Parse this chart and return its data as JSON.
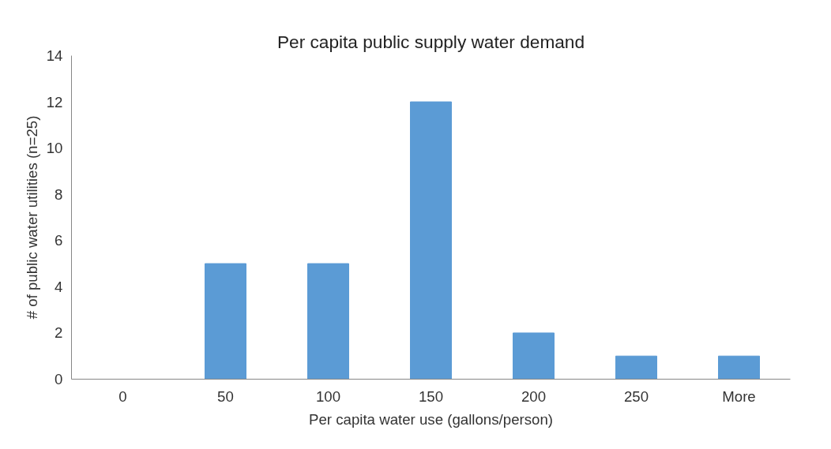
{
  "chart_data": {
    "type": "bar",
    "title": "Per capita public supply water demand",
    "xlabel": "Per capita water use (gallons/person)",
    "ylabel": "# of public water utilities (n=25)",
    "categories": [
      "0",
      "50",
      "100",
      "150",
      "200",
      "250",
      "More"
    ],
    "values": [
      0,
      5,
      5,
      12,
      2,
      1,
      1
    ],
    "color": "#5b9bd5",
    "ylim": [
      0,
      14
    ],
    "yticks": [
      0,
      2,
      4,
      6,
      8,
      10,
      12,
      14
    ],
    "grid": false
  }
}
